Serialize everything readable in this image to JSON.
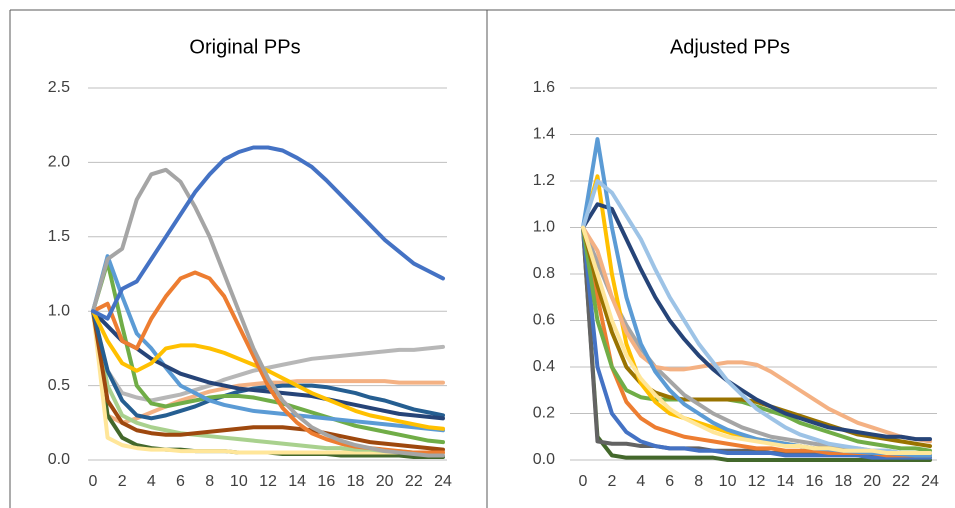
{
  "chart_data": [
    {
      "type": "line",
      "title": "Original PPs",
      "x": [
        0,
        1,
        2,
        3,
        4,
        5,
        6,
        7,
        8,
        9,
        10,
        11,
        12,
        13,
        14,
        15,
        16,
        17,
        18,
        19,
        20,
        21,
        22,
        23,
        24
      ],
      "xlim": [
        0,
        24
      ],
      "xticks": [
        0,
        2,
        4,
        6,
        8,
        10,
        12,
        14,
        16,
        18,
        20,
        22,
        24
      ],
      "ylim": [
        0,
        2.5
      ],
      "yticks": [
        {
          "value": 0,
          "label": "0.0"
        },
        0.5,
        {
          "value": 1,
          "label": "1.0"
        },
        1.5,
        {
          "value": 2,
          "label": "2.0"
        },
        2.5
      ],
      "grid": true,
      "series": [
        {
          "color": "#b7b7b7",
          "values": [
            1.0,
            0.6,
            0.45,
            0.42,
            0.4,
            0.42,
            0.44,
            0.47,
            0.5,
            0.54,
            0.57,
            0.6,
            0.62,
            0.64,
            0.66,
            0.68,
            0.69,
            0.7,
            0.71,
            0.72,
            0.73,
            0.74,
            0.74,
            0.75,
            0.76
          ]
        },
        {
          "color": "#f4b183",
          "values": [
            1.0,
            0.3,
            0.25,
            0.28,
            0.32,
            0.36,
            0.4,
            0.43,
            0.46,
            0.48,
            0.5,
            0.51,
            0.52,
            0.52,
            0.53,
            0.53,
            0.53,
            0.53,
            0.53,
            0.53,
            0.53,
            0.52,
            0.52,
            0.52,
            0.52
          ]
        },
        {
          "color": "#43682b",
          "values": [
            1.0,
            0.3,
            0.15,
            0.1,
            0.08,
            0.07,
            0.07,
            0.06,
            0.06,
            0.06,
            0.05,
            0.05,
            0.05,
            0.04,
            0.04,
            0.04,
            0.04,
            0.03,
            0.03,
            0.03,
            0.03,
            0.03,
            0.02,
            0.02,
            0.02
          ]
        },
        {
          "color": "#ffe699",
          "values": [
            1.0,
            0.15,
            0.1,
            0.08,
            0.07,
            0.07,
            0.06,
            0.06,
            0.06,
            0.06,
            0.05,
            0.05,
            0.05,
            0.05,
            0.05,
            0.05,
            0.05,
            0.05,
            0.05,
            0.05,
            0.05,
            0.05,
            0.05,
            0.05,
            0.05
          ]
        },
        {
          "color": "#a9d18e",
          "values": [
            1.0,
            0.5,
            0.3,
            0.25,
            0.22,
            0.2,
            0.18,
            0.17,
            0.16,
            0.15,
            0.14,
            0.13,
            0.12,
            0.11,
            0.1,
            0.09,
            0.08,
            0.08,
            0.07,
            0.07,
            0.06,
            0.06,
            0.05,
            0.05,
            0.05
          ]
        },
        {
          "color": "#9e480e",
          "values": [
            1.0,
            0.4,
            0.25,
            0.2,
            0.18,
            0.17,
            0.17,
            0.18,
            0.19,
            0.2,
            0.21,
            0.22,
            0.22,
            0.22,
            0.21,
            0.2,
            0.18,
            0.16,
            0.14,
            0.12,
            0.11,
            0.1,
            0.09,
            0.08,
            0.07
          ]
        },
        {
          "color": "#255e91",
          "values": [
            1.0,
            0.6,
            0.4,
            0.3,
            0.28,
            0.3,
            0.33,
            0.36,
            0.4,
            0.43,
            0.46,
            0.48,
            0.49,
            0.5,
            0.5,
            0.5,
            0.49,
            0.47,
            0.45,
            0.42,
            0.4,
            0.37,
            0.34,
            0.32,
            0.3
          ]
        },
        {
          "color": "#70ad47",
          "values": [
            1.0,
            1.33,
            0.9,
            0.5,
            0.38,
            0.36,
            0.38,
            0.4,
            0.42,
            0.43,
            0.43,
            0.42,
            0.4,
            0.38,
            0.35,
            0.32,
            0.29,
            0.26,
            0.23,
            0.21,
            0.19,
            0.17,
            0.15,
            0.13,
            0.12
          ]
        },
        {
          "color": "#5b9bd5",
          "values": [
            1.0,
            1.37,
            1.1,
            0.85,
            0.75,
            0.62,
            0.5,
            0.45,
            0.4,
            0.37,
            0.35,
            0.33,
            0.32,
            0.31,
            0.3,
            0.29,
            0.28,
            0.27,
            0.26,
            0.25,
            0.24,
            0.23,
            0.22,
            0.21,
            0.2
          ]
        },
        {
          "color": "#264478",
          "values": [
            1.0,
            0.9,
            0.8,
            0.75,
            0.68,
            0.63,
            0.58,
            0.55,
            0.52,
            0.5,
            0.48,
            0.47,
            0.46,
            0.45,
            0.44,
            0.43,
            0.41,
            0.39,
            0.37,
            0.35,
            0.33,
            0.31,
            0.3,
            0.29,
            0.28
          ]
        },
        {
          "color": "#ffc000",
          "values": [
            1.0,
            0.8,
            0.65,
            0.6,
            0.65,
            0.75,
            0.77,
            0.77,
            0.75,
            0.72,
            0.68,
            0.64,
            0.6,
            0.55,
            0.5,
            0.45,
            0.41,
            0.37,
            0.33,
            0.3,
            0.28,
            0.26,
            0.24,
            0.22,
            0.21
          ]
        },
        {
          "color": "#ed7d31",
          "values": [
            1.0,
            1.05,
            0.8,
            0.75,
            0.95,
            1.1,
            1.22,
            1.26,
            1.22,
            1.1,
            0.9,
            0.7,
            0.5,
            0.35,
            0.25,
            0.18,
            0.14,
            0.11,
            0.09,
            0.08,
            0.07,
            0.06,
            0.05,
            0.05,
            0.05
          ]
        },
        {
          "color": "#a5a5a5",
          "values": [
            1.0,
            1.35,
            1.42,
            1.75,
            1.92,
            1.95,
            1.87,
            1.7,
            1.5,
            1.25,
            1.0,
            0.75,
            0.55,
            0.4,
            0.3,
            0.22,
            0.17,
            0.13,
            0.1,
            0.08,
            0.06,
            0.05,
            0.04,
            0.03,
            0.03
          ]
        },
        {
          "color": "#4472c4",
          "values": [
            1.0,
            0.95,
            1.15,
            1.2,
            1.35,
            1.5,
            1.65,
            1.8,
            1.92,
            2.02,
            2.07,
            2.1,
            2.1,
            2.08,
            2.03,
            1.97,
            1.88,
            1.78,
            1.68,
            1.58,
            1.48,
            1.4,
            1.32,
            1.27,
            1.22
          ]
        }
      ]
    },
    {
      "type": "line",
      "title": "Adjusted PPs",
      "x": [
        0,
        1,
        2,
        3,
        4,
        5,
        6,
        7,
        8,
        9,
        10,
        11,
        12,
        13,
        14,
        15,
        16,
        17,
        18,
        19,
        20,
        21,
        22,
        23,
        24
      ],
      "xlim": [
        0,
        24
      ],
      "xticks": [
        0,
        2,
        4,
        6,
        8,
        10,
        12,
        14,
        16,
        18,
        20,
        22,
        24
      ],
      "ylim": [
        0,
        1.6
      ],
      "yticks": [
        {
          "value": 0,
          "label": "0.0"
        },
        0.2,
        0.4,
        0.6,
        0.8,
        {
          "value": 1,
          "label": "1.0"
        },
        1.2,
        1.4,
        1.6
      ],
      "grid": true,
      "series": [
        {
          "color": "#43682b",
          "values": [
            1.0,
            0.1,
            0.02,
            0.01,
            0.01,
            0.01,
            0.01,
            0.01,
            0.01,
            0.01,
            0.0,
            0.0,
            0.0,
            0.0,
            0.0,
            0.0,
            0.0,
            0.0,
            0.0,
            0.0,
            0.0,
            0.0,
            0.0,
            0.0,
            0.0
          ]
        },
        {
          "color": "#636363",
          "values": [
            1.0,
            0.08,
            0.07,
            0.07,
            0.06,
            0.06,
            0.05,
            0.05,
            0.05,
            0.04,
            0.04,
            0.04,
            0.04,
            0.03,
            0.03,
            0.03,
            0.03,
            0.03,
            0.03,
            0.02,
            0.02,
            0.02,
            0.02,
            0.02,
            0.02
          ]
        },
        {
          "color": "#4472c4",
          "values": [
            1.0,
            0.4,
            0.2,
            0.12,
            0.08,
            0.06,
            0.05,
            0.05,
            0.04,
            0.04,
            0.03,
            0.03,
            0.03,
            0.03,
            0.02,
            0.02,
            0.02,
            0.02,
            0.02,
            0.02,
            0.01,
            0.01,
            0.01,
            0.01,
            0.01
          ]
        },
        {
          "color": "#ed7d31",
          "values": [
            1.0,
            0.7,
            0.4,
            0.25,
            0.18,
            0.14,
            0.12,
            0.1,
            0.09,
            0.08,
            0.07,
            0.06,
            0.05,
            0.05,
            0.04,
            0.04,
            0.04,
            0.03,
            0.03,
            0.03,
            0.03,
            0.02,
            0.02,
            0.02,
            0.02
          ]
        },
        {
          "color": "#70ad47",
          "values": [
            1.0,
            0.6,
            0.4,
            0.3,
            0.27,
            0.26,
            0.26,
            0.26,
            0.26,
            0.26,
            0.26,
            0.25,
            0.23,
            0.21,
            0.19,
            0.16,
            0.14,
            0.12,
            0.1,
            0.08,
            0.07,
            0.06,
            0.05,
            0.05,
            0.04
          ]
        },
        {
          "color": "#997300",
          "values": [
            1.0,
            0.75,
            0.55,
            0.4,
            0.33,
            0.29,
            0.27,
            0.26,
            0.26,
            0.26,
            0.26,
            0.26,
            0.25,
            0.23,
            0.21,
            0.19,
            0.17,
            0.15,
            0.13,
            0.11,
            0.1,
            0.09,
            0.08,
            0.07,
            0.06
          ]
        },
        {
          "color": "#a5a5a5",
          "values": [
            1.0,
            0.85,
            0.7,
            0.58,
            0.48,
            0.4,
            0.34,
            0.28,
            0.24,
            0.2,
            0.17,
            0.14,
            0.12,
            0.1,
            0.09,
            0.08,
            0.07,
            0.06,
            0.05,
            0.05,
            0.04,
            0.04,
            0.03,
            0.03,
            0.03
          ]
        },
        {
          "color": "#ffc000",
          "values": [
            1.0,
            1.22,
            0.8,
            0.5,
            0.33,
            0.25,
            0.2,
            0.18,
            0.16,
            0.14,
            0.12,
            0.1,
            0.09,
            0.08,
            0.07,
            0.06,
            0.05,
            0.05,
            0.04,
            0.04,
            0.03,
            0.03,
            0.03,
            0.02,
            0.02
          ]
        },
        {
          "color": "#f4b183",
          "values": [
            1.0,
            0.9,
            0.7,
            0.55,
            0.45,
            0.4,
            0.39,
            0.39,
            0.4,
            0.41,
            0.42,
            0.42,
            0.41,
            0.38,
            0.34,
            0.3,
            0.26,
            0.22,
            0.19,
            0.16,
            0.14,
            0.12,
            0.1,
            0.09,
            0.08
          ]
        },
        {
          "color": "#264478",
          "values": [
            1.0,
            1.1,
            1.08,
            0.95,
            0.82,
            0.7,
            0.6,
            0.52,
            0.45,
            0.39,
            0.34,
            0.3,
            0.26,
            0.23,
            0.2,
            0.18,
            0.16,
            0.14,
            0.13,
            0.12,
            0.11,
            0.1,
            0.1,
            0.09,
            0.09
          ]
        },
        {
          "color": "#5b9bd5",
          "values": [
            1.0,
            1.38,
            1.0,
            0.7,
            0.5,
            0.38,
            0.3,
            0.24,
            0.2,
            0.16,
            0.13,
            0.11,
            0.09,
            0.08,
            0.07,
            0.06,
            0.05,
            0.045,
            0.04,
            0.035,
            0.03,
            0.03,
            0.025,
            0.02,
            0.02
          ]
        },
        {
          "color": "#9dc3e6",
          "values": [
            1.0,
            1.2,
            1.15,
            1.05,
            0.95,
            0.82,
            0.7,
            0.6,
            0.5,
            0.42,
            0.34,
            0.28,
            0.22,
            0.18,
            0.14,
            0.11,
            0.09,
            0.07,
            0.06,
            0.05,
            0.04,
            0.04,
            0.03,
            0.03,
            0.03
          ]
        },
        {
          "color": "#ffe699",
          "values": [
            1.0,
            0.8,
            0.6,
            0.45,
            0.35,
            0.28,
            0.22,
            0.18,
            0.15,
            0.12,
            0.1,
            0.09,
            0.08,
            0.07,
            0.06,
            0.06,
            0.05,
            0.05,
            0.04,
            0.04,
            0.04,
            0.03,
            0.03,
            0.03,
            0.03
          ]
        }
      ]
    }
  ]
}
